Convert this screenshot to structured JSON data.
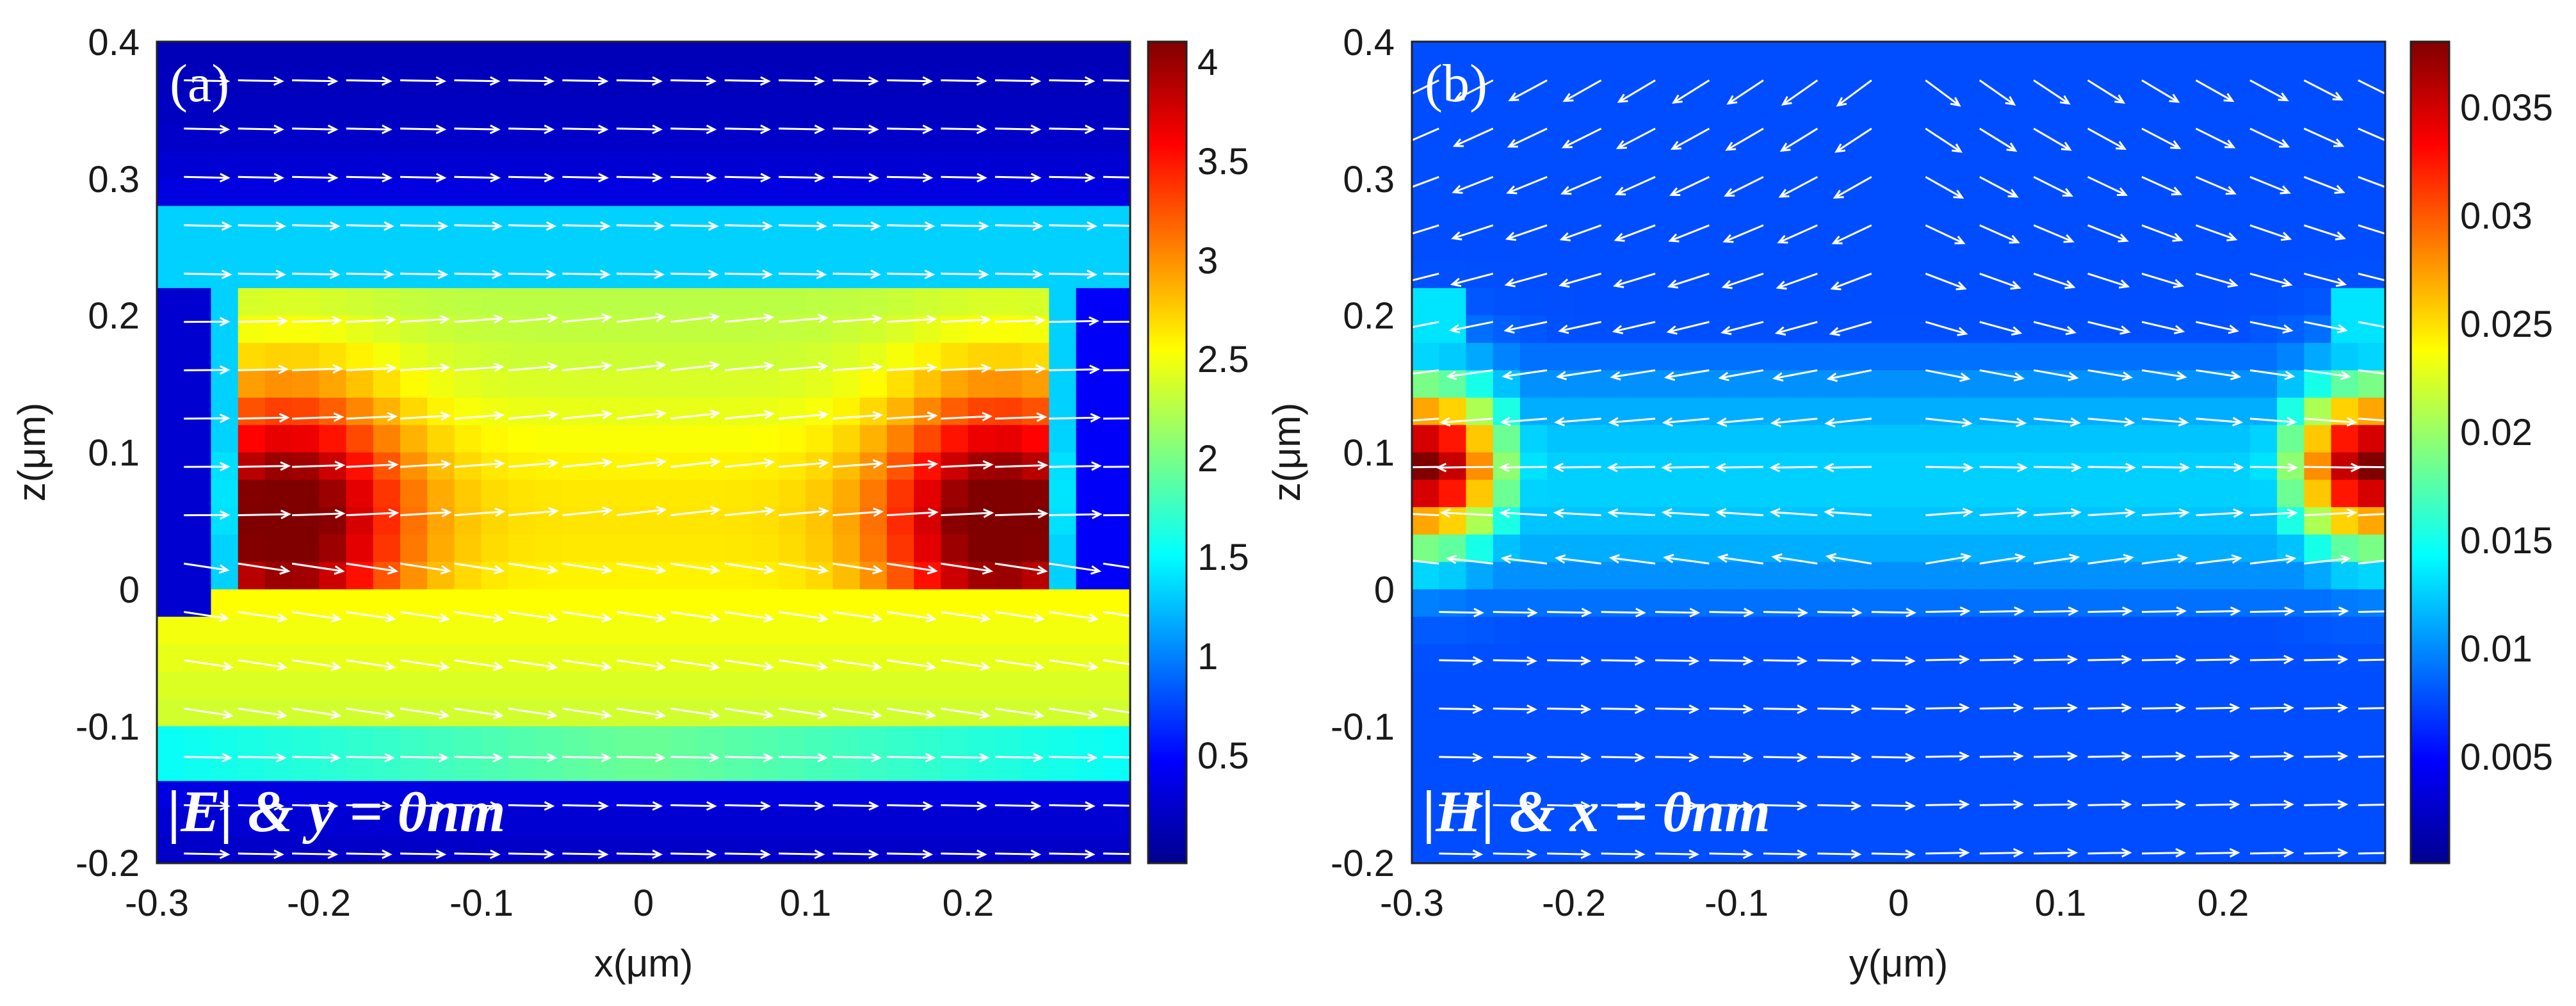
{
  "chart_data": [
    {
      "type": "heatmap",
      "panel_label": "(a)",
      "annotation": "|E| & y = 0nm",
      "xlabel": "x(μm)",
      "ylabel": "z(μm)",
      "xlim": [
        -0.3,
        0.3
      ],
      "ylim": [
        -0.2,
        0.4
      ],
      "xticks": [
        "-0.3",
        "-0.2",
        "-0.1",
        "0",
        "0.1",
        "0.2"
      ],
      "yticks": [
        "0.4",
        "0.3",
        "0.2",
        "0.1",
        "0",
        "-0.1",
        "-0.2"
      ],
      "colorbar": {
        "min": 0,
        "max": 4.15,
        "ticks": [
          "4",
          "3.5",
          "3",
          "2.5",
          "2",
          "1.5",
          "1",
          "0.5"
        ]
      },
      "field_structure": {
        "rect_x": [
          -0.26,
          0.26
        ],
        "rect_z": [
          0.0,
          0.22
        ],
        "peak_value": 4.1,
        "overlay": "white arrows showing field direction (mostly +x)"
      }
    },
    {
      "type": "heatmap",
      "panel_label": "(b)",
      "annotation": "|H| & x = 0nm",
      "xlabel": "y(μm)",
      "ylabel": "z(μm)",
      "xlim": [
        -0.3,
        0.3
      ],
      "ylim": [
        -0.2,
        0.4
      ],
      "xticks": [
        "-0.3",
        "-0.2",
        "-0.1",
        "0",
        "0.1",
        "0.2"
      ],
      "yticks": [
        "0.4",
        "0.3",
        "0.2",
        "0.1",
        "0",
        "-0.1",
        "-0.2"
      ],
      "colorbar": {
        "min": 0,
        "max": 0.038,
        "ticks": [
          "0.035",
          "0.03",
          "0.025",
          "0.02",
          "0.015",
          "0.01",
          "0.005"
        ]
      },
      "field_structure": {
        "hotspots_y": [
          -0.28,
          0.28
        ],
        "hotspot_z": [
          0.03,
          0.16
        ],
        "peak_value": 0.038,
        "overlay": "white arrows showing circulating magnetic field"
      }
    }
  ]
}
